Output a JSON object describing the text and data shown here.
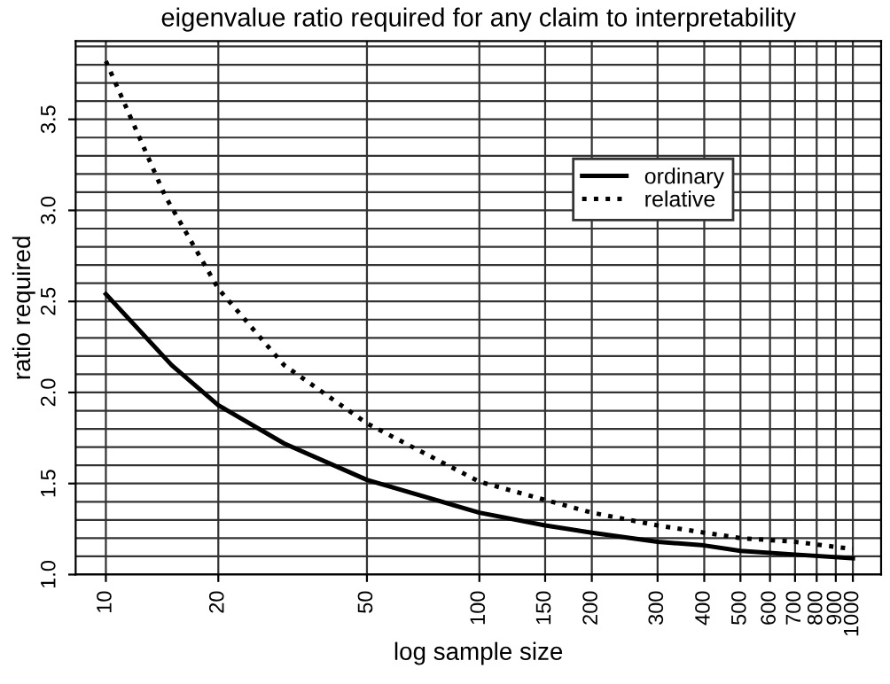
{
  "chart_data": {
    "type": "line",
    "title": "eigenvalue ratio required for any claim to interpretability",
    "xlabel": "log sample size",
    "ylabel": "ratio required",
    "log": "x",
    "grid": true,
    "legend": "top right",
    "xlim": [
      8.3,
      1190
    ],
    "xticks": [
      10,
      20,
      50,
      100,
      150,
      200,
      300,
      400,
      500,
      600,
      700,
      800,
      900,
      1000
    ],
    "ylim": [
      1.0,
      3.93
    ],
    "yticks": [
      {
        "value": 1.0,
        "label": "1.0"
      },
      {
        "value": 1.1,
        "label": null
      },
      {
        "value": 1.2,
        "label": null
      },
      {
        "value": 1.3,
        "label": null
      },
      {
        "value": 1.4,
        "label": null
      },
      {
        "value": 1.5,
        "label": "1.5"
      },
      {
        "value": 1.6,
        "label": null
      },
      {
        "value": 1.7,
        "label": null
      },
      {
        "value": 1.8,
        "label": null
      },
      {
        "value": 1.9,
        "label": null
      },
      {
        "value": 2.0,
        "label": "2.0"
      },
      {
        "value": 2.1,
        "label": null
      },
      {
        "value": 2.2,
        "label": null
      },
      {
        "value": 2.3,
        "label": null
      },
      {
        "value": 2.4,
        "label": null
      },
      {
        "value": 2.5,
        "label": "2.5"
      },
      {
        "value": 2.6,
        "label": null
      },
      {
        "value": 2.7,
        "label": null
      },
      {
        "value": 2.8,
        "label": null
      },
      {
        "value": 2.9,
        "label": null
      },
      {
        "value": 3.0,
        "label": "3.0"
      },
      {
        "value": 3.1,
        "label": null
      },
      {
        "value": 3.2,
        "label": null
      },
      {
        "value": 3.3,
        "label": null
      },
      {
        "value": 3.4,
        "label": null
      },
      {
        "value": 3.5,
        "label": "3.5"
      },
      {
        "value": 3.6,
        "label": null
      },
      {
        "value": 3.7,
        "label": null
      },
      {
        "value": 3.8,
        "label": null
      },
      {
        "value": 3.9,
        "label": null
      }
    ],
    "series": [
      {
        "name": "ordinary",
        "color": "#000000",
        "line_style": "solid",
        "x": [
          10,
          15,
          20,
          30,
          50,
          100,
          150,
          200,
          300,
          400,
          500,
          700,
          1000
        ],
        "values": [
          2.54,
          2.15,
          1.93,
          1.72,
          1.52,
          1.34,
          1.27,
          1.23,
          1.18,
          1.16,
          1.13,
          1.11,
          1.09
        ]
      },
      {
        "name": "relative",
        "color": "#000000",
        "line_style": "dotted",
        "x": [
          10,
          14.4,
          20,
          30,
          50,
          100,
          150,
          200,
          300,
          400,
          500,
          700,
          1000
        ],
        "values": [
          3.82,
          3.08,
          2.57,
          2.15,
          1.83,
          1.51,
          1.41,
          1.34,
          1.27,
          1.23,
          1.2,
          1.18,
          1.14
        ]
      }
    ]
  }
}
